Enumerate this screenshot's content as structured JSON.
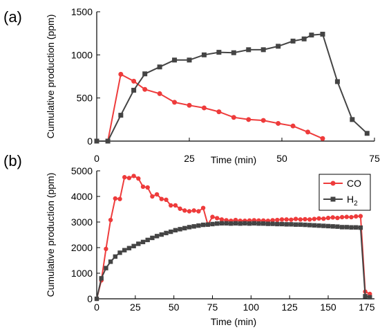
{
  "chart_data": [
    {
      "panel_label": "(a)",
      "type": "line",
      "xlabel": "Time (min)",
      "ylabel": "Cumulative production (ppm)",
      "xlim": [
        0,
        75
      ],
      "ylim": [
        0,
        1500
      ],
      "xticks": [
        0,
        25,
        50,
        75
      ],
      "yticks": [
        0,
        500,
        1000,
        1500
      ],
      "series": [
        {
          "color": "#ee3b3b",
          "marker": "circle",
          "x": [
            0,
            3,
            6.5,
            10,
            13,
            17,
            21,
            25,
            29,
            33,
            37,
            41,
            45,
            49,
            53,
            57,
            61
          ],
          "y": [
            0,
            0,
            775,
            695,
            600,
            550,
            450,
            415,
            385,
            340,
            275,
            250,
            240,
            205,
            175,
            105,
            30
          ]
        },
        {
          "color": "#444444",
          "marker": "square",
          "x": [
            0,
            3,
            6.5,
            10,
            13,
            17,
            21,
            25,
            29,
            33,
            37,
            41,
            45,
            49,
            53,
            56,
            58,
            61,
            65,
            69,
            73
          ],
          "y": [
            0,
            0,
            300,
            590,
            780,
            860,
            940,
            940,
            1000,
            1030,
            1025,
            1060,
            1060,
            1100,
            1160,
            1185,
            1230,
            1240,
            690,
            250,
            90
          ]
        }
      ]
    },
    {
      "panel_label": "(b)",
      "type": "line",
      "xlabel": "Time (min)",
      "ylabel": "Cumulative production (ppm)",
      "xlim": [
        0,
        180
      ],
      "ylim": [
        0,
        5000
      ],
      "xticks": [
        0,
        25,
        50,
        75,
        100,
        125,
        150,
        175
      ],
      "yticks": [
        0,
        1000,
        2000,
        3000,
        4000,
        5000
      ],
      "legend_position": "top-right",
      "series": [
        {
          "name": "CO",
          "color": "#ee3b3b",
          "marker": "circle",
          "x": [
            0,
            3,
            6,
            9,
            12,
            15,
            18,
            21,
            24,
            27,
            30,
            33,
            36,
            39,
            42,
            45,
            48,
            51,
            54,
            57,
            60,
            63,
            66,
            69,
            72,
            75,
            78,
            81,
            84,
            87,
            90,
            93,
            96,
            99,
            102,
            105,
            108,
            111,
            114,
            117,
            120,
            123,
            126,
            129,
            132,
            135,
            138,
            141,
            144,
            147,
            150,
            153,
            156,
            159,
            162,
            165,
            168,
            171,
            174,
            177
          ],
          "y": [
            0,
            720,
            1950,
            3080,
            3920,
            3900,
            4750,
            4720,
            4800,
            4700,
            4380,
            4350,
            4000,
            4080,
            3900,
            3870,
            3650,
            3650,
            3520,
            3450,
            3420,
            3450,
            3420,
            3550,
            2900,
            3200,
            3150,
            3100,
            3070,
            3050,
            3080,
            3050,
            3050,
            3060,
            3070,
            3060,
            3060,
            3050,
            3070,
            3080,
            3100,
            3100,
            3090,
            3120,
            3100,
            3110,
            3100,
            3120,
            3140,
            3130,
            3160,
            3180,
            3160,
            3190,
            3200,
            3190,
            3220,
            3230,
            280,
            190
          ]
        },
        {
          "name": "H2",
          "color": "#444444",
          "marker": "square",
          "x": [
            0,
            3,
            6,
            9,
            12,
            15,
            18,
            21,
            24,
            27,
            30,
            33,
            36,
            39,
            42,
            45,
            48,
            51,
            54,
            57,
            60,
            63,
            66,
            69,
            72,
            75,
            78,
            81,
            84,
            87,
            90,
            93,
            96,
            99,
            102,
            105,
            108,
            111,
            114,
            117,
            120,
            123,
            126,
            129,
            132,
            135,
            138,
            141,
            144,
            147,
            150,
            153,
            156,
            159,
            162,
            165,
            168,
            171,
            174,
            177
          ],
          "y": [
            0,
            800,
            1200,
            1450,
            1650,
            1800,
            1900,
            1980,
            2060,
            2150,
            2220,
            2300,
            2380,
            2450,
            2510,
            2570,
            2620,
            2680,
            2720,
            2760,
            2800,
            2830,
            2860,
            2890,
            2900,
            2920,
            2940,
            2950,
            2950,
            2940,
            2950,
            2940,
            2950,
            2940,
            2950,
            2940,
            2940,
            2930,
            2930,
            2920,
            2920,
            2910,
            2910,
            2900,
            2900,
            2890,
            2880,
            2870,
            2860,
            2850,
            2840,
            2830,
            2820,
            2800,
            2800,
            2790,
            2790,
            2780,
            100,
            60
          ]
        }
      ]
    }
  ],
  "legend": {
    "co_label": "CO",
    "h2_main": "H",
    "h2_sub": "2"
  }
}
